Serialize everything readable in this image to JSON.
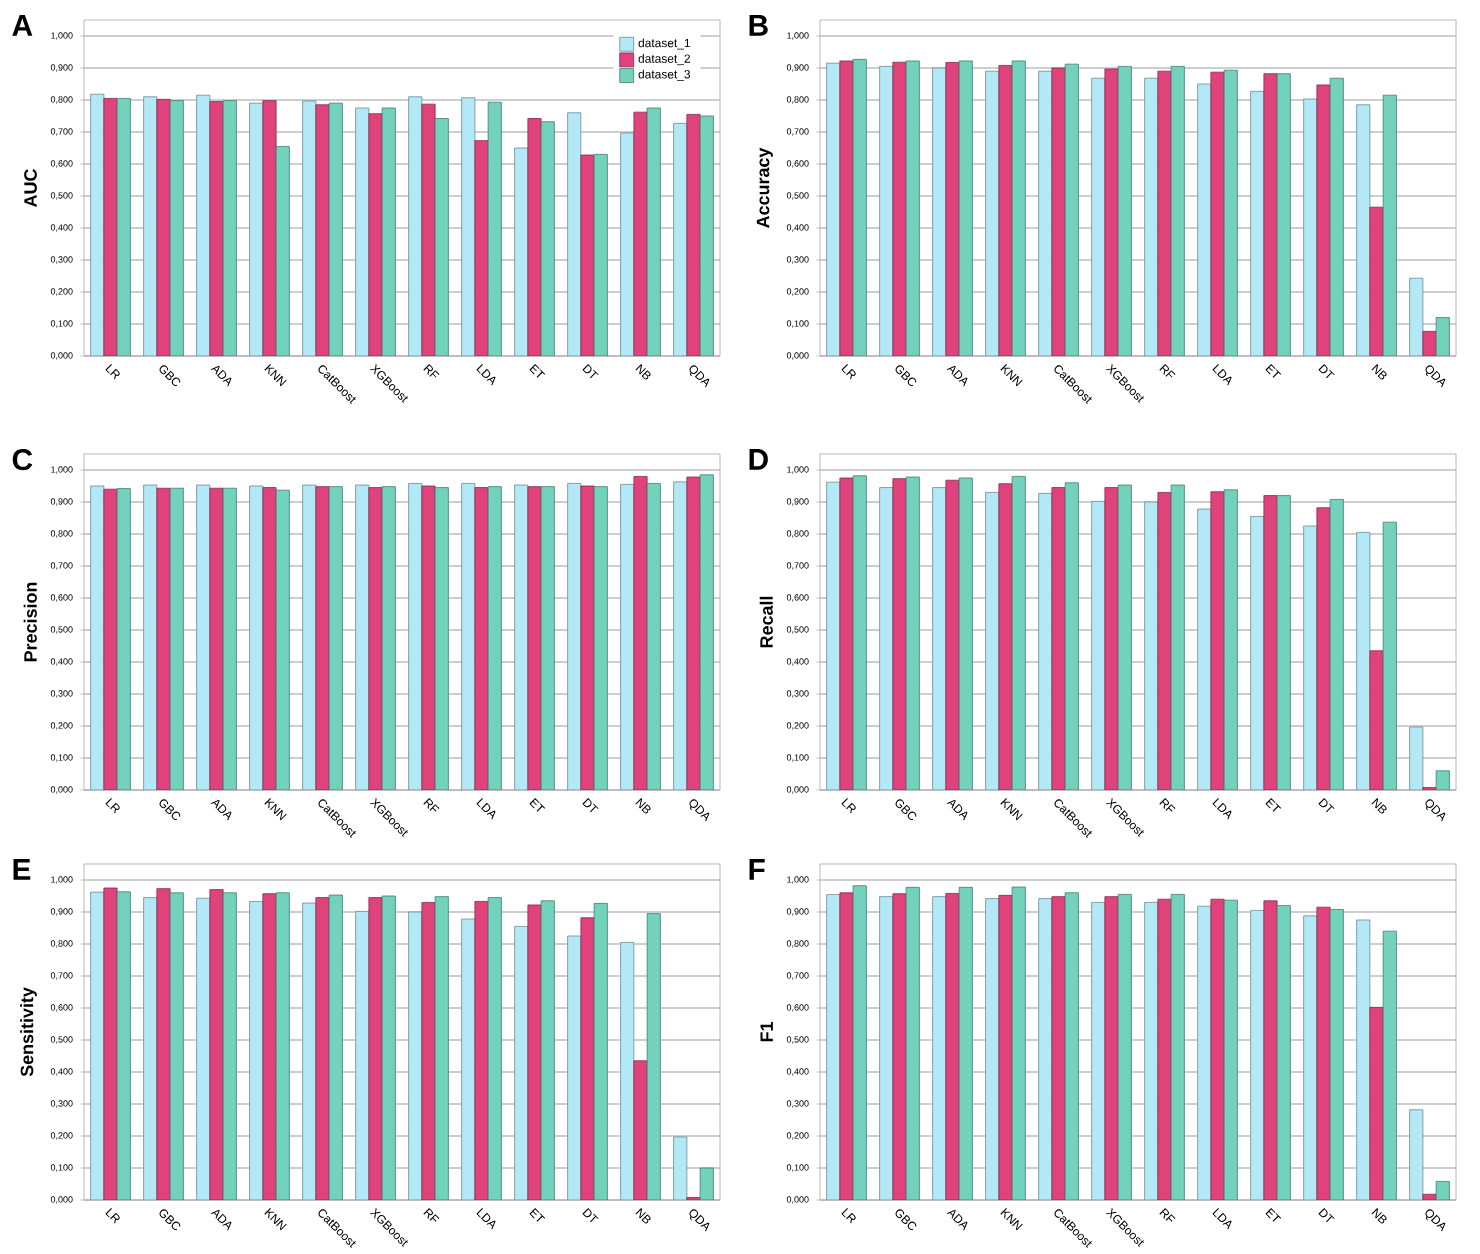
{
  "chart_data": [
    {
      "type": "bar",
      "title": "A",
      "ylabel": "AUC",
      "categories": [
        "LR",
        "GBC",
        "ADA",
        "KNN",
        "CatBoost",
        "XGBoost",
        "RF",
        "LDA",
        "ET",
        "DT",
        "NB",
        "QDA"
      ],
      "ylim": [
        0,
        1.05
      ],
      "yticks": [
        {
          "value": 0,
          "label": "0,000"
        },
        {
          "value": 0.1,
          "label": "0,100"
        },
        {
          "value": 0.2,
          "label": "0,200"
        },
        {
          "value": 0.3,
          "label": "0,300"
        },
        {
          "value": 0.4,
          "label": "0,400"
        },
        {
          "value": 0.5,
          "label": "0,500"
        },
        {
          "value": 0.6,
          "label": "0,600"
        },
        {
          "value": 0.7,
          "label": "0,700"
        },
        {
          "value": 0.8,
          "label": "0,800"
        },
        {
          "value": 0.9,
          "label": "0,900"
        },
        {
          "value": 1,
          "label": "1,000"
        }
      ],
      "grid": "y",
      "legend": "top right",
      "series": [
        {
          "name": "dataset_1",
          "color": "#b3e8f7",
          "values": [
            0.818,
            0.81,
            0.815,
            0.79,
            0.797,
            0.775,
            0.81,
            0.807,
            0.65,
            0.76,
            0.697,
            0.727
          ]
        },
        {
          "name": "dataset_2",
          "color": "#e0437c",
          "values": [
            0.805,
            0.802,
            0.795,
            0.798,
            0.785,
            0.757,
            0.787,
            0.673,
            0.742,
            0.628,
            0.762,
            0.755
          ]
        },
        {
          "name": "dataset_3",
          "color": "#72d2bb",
          "values": [
            0.805,
            0.798,
            0.798,
            0.655,
            0.79,
            0.775,
            0.742,
            0.793,
            0.732,
            0.63,
            0.775,
            0.75
          ]
        }
      ]
    },
    {
      "type": "bar",
      "title": "B",
      "ylabel": "Accuracy",
      "categories": [
        "LR",
        "GBC",
        "ADA",
        "KNN",
        "CatBoost",
        "XGBoost",
        "RF",
        "LDA",
        "ET",
        "DT",
        "NB",
        "QDA"
      ],
      "ylim": [
        0,
        1.05
      ],
      "yticks": [
        {
          "value": 0,
          "label": "0,000"
        },
        {
          "value": 0.1,
          "label": "0,100"
        },
        {
          "value": 0.2,
          "label": "0,200"
        },
        {
          "value": 0.3,
          "label": "0,300"
        },
        {
          "value": 0.4,
          "label": "0,400"
        },
        {
          "value": 0.5,
          "label": "0,500"
        },
        {
          "value": 0.6,
          "label": "0,600"
        },
        {
          "value": 0.7,
          "label": "0,700"
        },
        {
          "value": 0.8,
          "label": "0,800"
        },
        {
          "value": 0.9,
          "label": "0,900"
        },
        {
          "value": 1,
          "label": "1,000"
        }
      ],
      "grid": "y",
      "series": [
        {
          "color": "#b3e8f7",
          "values": [
            0.915,
            0.905,
            0.9,
            0.89,
            0.89,
            0.868,
            0.868,
            0.85,
            0.827,
            0.803,
            0.785,
            0.243
          ]
        },
        {
          "color": "#e0437c",
          "values": [
            0.922,
            0.918,
            0.917,
            0.908,
            0.9,
            0.897,
            0.89,
            0.887,
            0.882,
            0.847,
            0.465,
            0.077
          ]
        },
        {
          "color": "#72d2bb",
          "values": [
            0.927,
            0.922,
            0.922,
            0.922,
            0.912,
            0.905,
            0.905,
            0.893,
            0.882,
            0.868,
            0.815,
            0.12
          ]
        }
      ]
    },
    {
      "type": "bar",
      "title": "C",
      "ylabel": "Precision",
      "categories": [
        "LR",
        "GBC",
        "ADA",
        "KNN",
        "CatBoost",
        "XGBoost",
        "RF",
        "LDA",
        "ET",
        "DT",
        "NB",
        "QDA"
      ],
      "ylim": [
        0,
        1.05
      ],
      "yticks": [
        {
          "value": 0,
          "label": "0,000"
        },
        {
          "value": 0.1,
          "label": "0,100"
        },
        {
          "value": 0.2,
          "label": "0,200"
        },
        {
          "value": 0.3,
          "label": "0,300"
        },
        {
          "value": 0.4,
          "label": "0,400"
        },
        {
          "value": 0.5,
          "label": "0,500"
        },
        {
          "value": 0.6,
          "label": "0,600"
        },
        {
          "value": 0.7,
          "label": "0,700"
        },
        {
          "value": 0.8,
          "label": "0,800"
        },
        {
          "value": 0.9,
          "label": "0,900"
        },
        {
          "value": 1,
          "label": "1,000"
        }
      ],
      "grid": "y",
      "series": [
        {
          "color": "#b3e8f7",
          "values": [
            0.95,
            0.953,
            0.953,
            0.95,
            0.953,
            0.953,
            0.958,
            0.958,
            0.953,
            0.958,
            0.955,
            0.963
          ]
        },
        {
          "color": "#e0437c",
          "values": [
            0.94,
            0.943,
            0.943,
            0.945,
            0.948,
            0.945,
            0.95,
            0.945,
            0.948,
            0.95,
            0.98,
            0.978
          ]
        },
        {
          "color": "#72d2bb",
          "values": [
            0.942,
            0.943,
            0.943,
            0.937,
            0.948,
            0.948,
            0.945,
            0.948,
            0.948,
            0.948,
            0.958,
            0.985
          ]
        }
      ]
    },
    {
      "type": "bar",
      "title": "D",
      "ylabel": "Recall",
      "categories": [
        "LR",
        "GBC",
        "ADA",
        "KNN",
        "CatBoost",
        "XGBoost",
        "RF",
        "LDA",
        "ET",
        "DT",
        "NB",
        "QDA"
      ],
      "ylim": [
        0,
        1.05
      ],
      "yticks": [
        {
          "value": 0,
          "label": "0,000"
        },
        {
          "value": 0.1,
          "label": "0,100"
        },
        {
          "value": 0.2,
          "label": "0,200"
        },
        {
          "value": 0.3,
          "label": "0,300"
        },
        {
          "value": 0.4,
          "label": "0,400"
        },
        {
          "value": 0.5,
          "label": "0,500"
        },
        {
          "value": 0.6,
          "label": "0,600"
        },
        {
          "value": 0.7,
          "label": "0,700"
        },
        {
          "value": 0.8,
          "label": "0,800"
        },
        {
          "value": 0.9,
          "label": "0,900"
        },
        {
          "value": 1,
          "label": "1,000"
        }
      ],
      "grid": "y",
      "series": [
        {
          "color": "#b3e8f7",
          "values": [
            0.962,
            0.945,
            0.945,
            0.93,
            0.927,
            0.902,
            0.9,
            0.878,
            0.855,
            0.825,
            0.805,
            0.197
          ]
        },
        {
          "color": "#e0437c",
          "values": [
            0.975,
            0.973,
            0.968,
            0.957,
            0.945,
            0.945,
            0.93,
            0.932,
            0.92,
            0.882,
            0.435,
            0.008
          ]
        },
        {
          "color": "#72d2bb",
          "values": [
            0.982,
            0.978,
            0.975,
            0.98,
            0.96,
            0.953,
            0.953,
            0.938,
            0.92,
            0.908,
            0.837,
            0.06
          ]
        }
      ]
    },
    {
      "type": "bar",
      "title": "E",
      "ylabel": "Sensitivity",
      "categories": [
        "LR",
        "GBC",
        "ADA",
        "KNN",
        "CatBoost",
        "XGBoost",
        "RF",
        "LDA",
        "ET",
        "DT",
        "NB",
        "QDA"
      ],
      "ylim": [
        0,
        1.05
      ],
      "yticks": [
        {
          "value": 0,
          "label": "0,000"
        },
        {
          "value": 0.1,
          "label": "0,100"
        },
        {
          "value": 0.2,
          "label": "0,200"
        },
        {
          "value": 0.3,
          "label": "0,300"
        },
        {
          "value": 0.4,
          "label": "0,400"
        },
        {
          "value": 0.5,
          "label": "0,500"
        },
        {
          "value": 0.6,
          "label": "0,600"
        },
        {
          "value": 0.7,
          "label": "0,700"
        },
        {
          "value": 0.8,
          "label": "0,800"
        },
        {
          "value": 0.9,
          "label": "0,900"
        },
        {
          "value": 1,
          "label": "1,000"
        }
      ],
      "grid": "y",
      "series": [
        {
          "color": "#b3e8f7",
          "values": [
            0.962,
            0.945,
            0.943,
            0.933,
            0.928,
            0.902,
            0.9,
            0.878,
            0.855,
            0.825,
            0.805,
            0.197
          ]
        },
        {
          "color": "#e0437c",
          "values": [
            0.975,
            0.973,
            0.97,
            0.957,
            0.945,
            0.945,
            0.93,
            0.933,
            0.922,
            0.882,
            0.435,
            0.008
          ]
        },
        {
          "color": "#72d2bb",
          "values": [
            0.963,
            0.96,
            0.96,
            0.96,
            0.953,
            0.95,
            0.948,
            0.945,
            0.935,
            0.927,
            0.895,
            0.1
          ]
        }
      ]
    },
    {
      "type": "bar",
      "title": "F",
      "ylabel": "F1",
      "categories": [
        "LR",
        "GBC",
        "ADA",
        "KNN",
        "CatBoost",
        "XGBoost",
        "RF",
        "LDA",
        "ET",
        "DT",
        "NB",
        "QDA"
      ],
      "ylim": [
        0,
        1.05
      ],
      "yticks": [
        {
          "value": 0,
          "label": "0,000"
        },
        {
          "value": 0.1,
          "label": "0,100"
        },
        {
          "value": 0.2,
          "label": "0,200"
        },
        {
          "value": 0.3,
          "label": "0,300"
        },
        {
          "value": 0.4,
          "label": "0,400"
        },
        {
          "value": 0.5,
          "label": "0,500"
        },
        {
          "value": 0.6,
          "label": "0,600"
        },
        {
          "value": 0.7,
          "label": "0,700"
        },
        {
          "value": 0.8,
          "label": "0,800"
        },
        {
          "value": 0.9,
          "label": "0,900"
        },
        {
          "value": 1,
          "label": "1,000"
        }
      ],
      "grid": "y",
      "series": [
        {
          "color": "#b3e8f7",
          "values": [
            0.955,
            0.948,
            0.948,
            0.942,
            0.942,
            0.93,
            0.93,
            0.918,
            0.905,
            0.888,
            0.875,
            0.282
          ]
        },
        {
          "color": "#e0437c",
          "values": [
            0.96,
            0.957,
            0.958,
            0.952,
            0.948,
            0.948,
            0.94,
            0.94,
            0.935,
            0.915,
            0.602,
            0.018
          ]
        },
        {
          "color": "#72d2bb",
          "values": [
            0.982,
            0.977,
            0.977,
            0.978,
            0.96,
            0.955,
            0.955,
            0.937,
            0.92,
            0.908,
            0.84,
            0.058
          ]
        }
      ]
    }
  ]
}
